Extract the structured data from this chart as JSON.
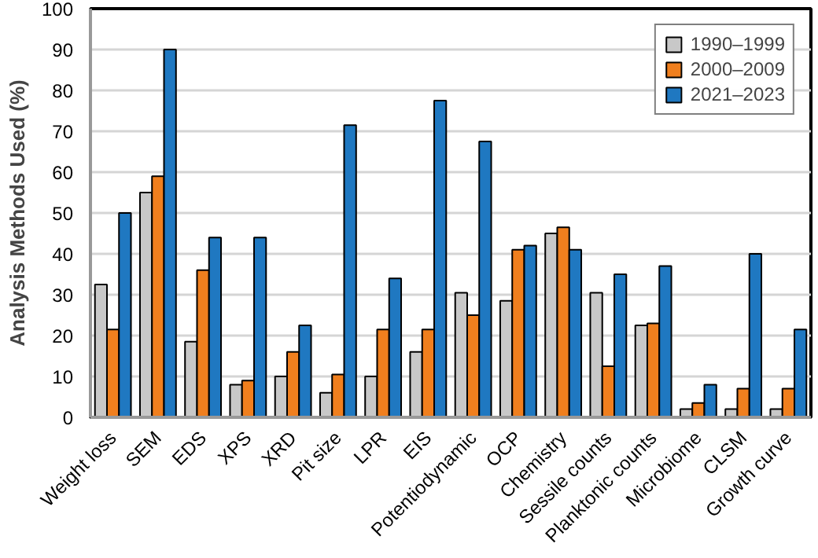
{
  "chart_data": {
    "type": "bar",
    "ylabel": "Analysis Methods Used (%)",
    "categories": [
      "Weight loss",
      "SEM",
      "EDS",
      "XPS",
      "XRD",
      "Pit size",
      "LPR",
      "EIS",
      "Potentiodynamic",
      "OCP",
      "Chemistry",
      "Sessile counts",
      "Planktonic counts",
      "Microbiome",
      "CLSM",
      "Growth curve"
    ],
    "series": [
      {
        "name": "1990–1999",
        "color": "#c8c8c8",
        "values": [
          32.5,
          55,
          18.5,
          8,
          10,
          6,
          10,
          16,
          30.5,
          28.5,
          45,
          30.5,
          22.5,
          2,
          2,
          2
        ]
      },
      {
        "name": "2000–2009",
        "color": "#f07f1e",
        "values": [
          21.5,
          59,
          36,
          9,
          16,
          10.5,
          21.5,
          21.5,
          25,
          41,
          46.5,
          12.5,
          23,
          3.5,
          7,
          7
        ]
      },
      {
        "name": "2021–2023",
        "color": "#1f78c1",
        "values": [
          50,
          90,
          44,
          44,
          22.5,
          71.5,
          34,
          77.5,
          67.5,
          42,
          41,
          35,
          37,
          8,
          40,
          21.5
        ]
      }
    ],
    "ylim": [
      0,
      100
    ],
    "yticks": [
      0,
      10,
      20,
      30,
      40,
      50,
      60,
      70,
      80,
      90,
      100
    ],
    "grid": "y",
    "legend": "top right"
  }
}
